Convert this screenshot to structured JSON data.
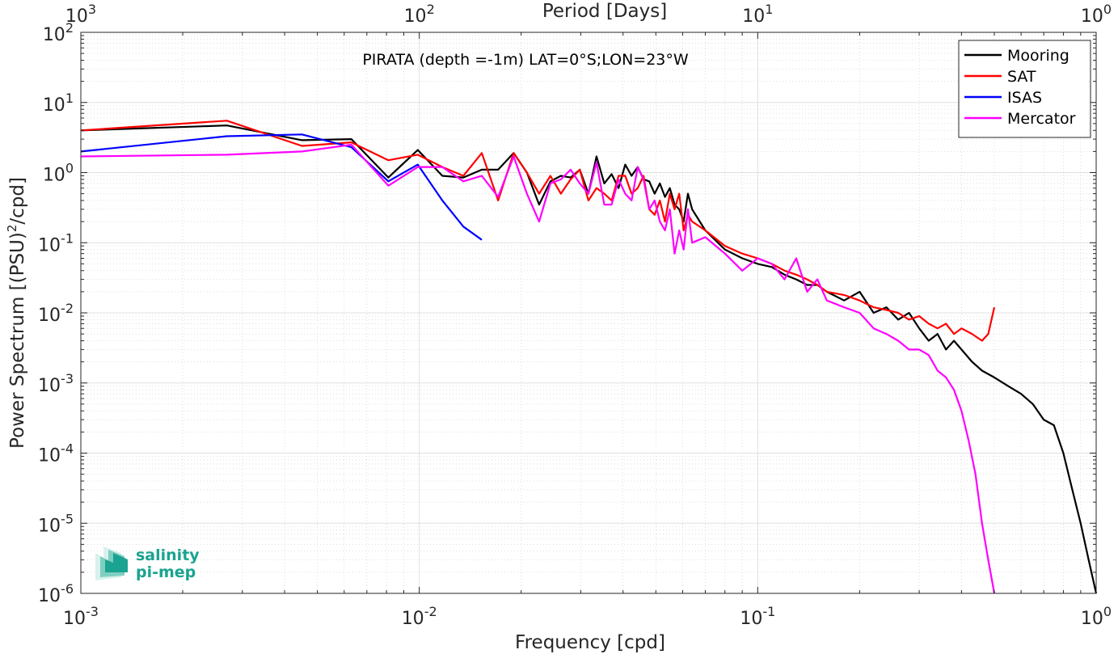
{
  "chart_data": {
    "type": "line",
    "title": "PIRATA (depth =-1m) LAT=0°S;LON=23°W",
    "xlabel": "Frequency [cpd]",
    "ylabel": "Power Spectrum [(PSU)^2/cpd]",
    "ylabel_parts": [
      "Power Spectrum [(PSU)",
      "2",
      "/cpd]"
    ],
    "x2label": "Period [Days]",
    "xscale": "log",
    "yscale": "log",
    "xlim": [
      0.001,
      1
    ],
    "ylim": [
      1e-06,
      100
    ],
    "grid": true,
    "minor_grid": true,
    "legend_position": "top-right",
    "x_ticks": [
      {
        "value": 0.001,
        "base": "10",
        "exp": "-3"
      },
      {
        "value": 0.01,
        "base": "10",
        "exp": "-2"
      },
      {
        "value": 0.1,
        "base": "10",
        "exp": "-1"
      },
      {
        "value": 1,
        "base": "10",
        "exp": "0"
      }
    ],
    "y_ticks": [
      {
        "value": 100,
        "base": "10",
        "exp": "2"
      },
      {
        "value": 10,
        "base": "10",
        "exp": "1"
      },
      {
        "value": 1,
        "base": "10",
        "exp": "0"
      },
      {
        "value": 0.1,
        "base": "10",
        "exp": "-1"
      },
      {
        "value": 0.01,
        "base": "10",
        "exp": "-2"
      },
      {
        "value": 0.001,
        "base": "10",
        "exp": "-3"
      },
      {
        "value": 0.0001,
        "base": "10",
        "exp": "-4"
      },
      {
        "value": 1e-05,
        "base": "10",
        "exp": "-5"
      },
      {
        "value": 1e-06,
        "base": "10",
        "exp": "-6"
      }
    ],
    "x2_ticks": [
      {
        "value": 0.001,
        "base": "10",
        "exp": "3"
      },
      {
        "value": 0.01,
        "base": "10",
        "exp": "2"
      },
      {
        "value": 0.1,
        "base": "10",
        "exp": "1"
      },
      {
        "value": 1,
        "base": "10",
        "exp": "0"
      }
    ],
    "series": [
      {
        "name": "Mooring",
        "color": "#000000",
        "x": [
          0.001,
          0.0027,
          0.0045,
          0.0063,
          0.0081,
          0.0099,
          0.0117,
          0.0135,
          0.0153,
          0.0171,
          0.019,
          0.0208,
          0.0226,
          0.0244,
          0.0262,
          0.028,
          0.0298,
          0.0316,
          0.0334,
          0.0352,
          0.037,
          0.0388,
          0.0406,
          0.0424,
          0.0442,
          0.046,
          0.0478,
          0.0496,
          0.0514,
          0.0532,
          0.055,
          0.0568,
          0.0586,
          0.0604,
          0.0622,
          0.064,
          0.07,
          0.08,
          0.09,
          0.1,
          0.11,
          0.12,
          0.13,
          0.14,
          0.15,
          0.16,
          0.18,
          0.2,
          0.22,
          0.24,
          0.26,
          0.28,
          0.3,
          0.32,
          0.34,
          0.36,
          0.38,
          0.4,
          0.43,
          0.46,
          0.5,
          0.55,
          0.6,
          0.65,
          0.7,
          0.75,
          0.8,
          0.85,
          0.9,
          0.95,
          1.0
        ],
        "y": [
          4.0,
          4.7,
          2.9,
          3.0,
          0.85,
          2.1,
          0.9,
          0.85,
          1.1,
          1.1,
          1.9,
          1.0,
          0.35,
          0.75,
          0.9,
          0.85,
          1.1,
          0.5,
          1.7,
          0.7,
          0.95,
          0.6,
          1.3,
          0.9,
          1.2,
          0.8,
          0.75,
          0.5,
          0.7,
          0.45,
          0.6,
          0.35,
          0.3,
          0.2,
          0.5,
          0.3,
          0.15,
          0.08,
          0.06,
          0.05,
          0.045,
          0.035,
          0.03,
          0.025,
          0.025,
          0.02,
          0.015,
          0.02,
          0.01,
          0.012,
          0.008,
          0.01,
          0.006,
          0.004,
          0.005,
          0.003,
          0.004,
          0.003,
          0.002,
          0.0015,
          0.0012,
          0.0009,
          0.0007,
          0.0005,
          0.0003,
          0.00025,
          0.0001,
          3e-05,
          1e-05,
          3e-06,
          1e-06
        ]
      },
      {
        "name": "SAT",
        "color": "#ff0000",
        "x": [
          0.001,
          0.0027,
          0.0045,
          0.0063,
          0.0081,
          0.0099,
          0.0117,
          0.0135,
          0.0153,
          0.0171,
          0.019,
          0.0208,
          0.0226,
          0.0244,
          0.0262,
          0.028,
          0.0298,
          0.0316,
          0.0334,
          0.0352,
          0.037,
          0.0388,
          0.0406,
          0.0424,
          0.0442,
          0.046,
          0.0478,
          0.0496,
          0.0514,
          0.0532,
          0.055,
          0.0568,
          0.0586,
          0.0604,
          0.0622,
          0.064,
          0.07,
          0.08,
          0.09,
          0.1,
          0.11,
          0.12,
          0.13,
          0.14,
          0.15,
          0.16,
          0.18,
          0.2,
          0.22,
          0.24,
          0.26,
          0.28,
          0.3,
          0.32,
          0.34,
          0.36,
          0.38,
          0.4,
          0.43,
          0.46,
          0.48,
          0.5
        ],
        "y": [
          4.0,
          5.5,
          2.4,
          2.7,
          1.5,
          1.8,
          1.2,
          0.9,
          1.9,
          0.4,
          1.9,
          1.0,
          0.5,
          0.9,
          0.5,
          0.8,
          1.1,
          0.4,
          0.6,
          0.5,
          0.4,
          0.9,
          0.9,
          0.5,
          0.6,
          0.9,
          0.3,
          0.25,
          0.4,
          0.2,
          0.5,
          0.3,
          0.5,
          0.15,
          0.25,
          0.2,
          0.15,
          0.09,
          0.07,
          0.06,
          0.05,
          0.04,
          0.035,
          0.03,
          0.025,
          0.02,
          0.018,
          0.015,
          0.012,
          0.011,
          0.01,
          0.008,
          0.009,
          0.007,
          0.006,
          0.007,
          0.005,
          0.006,
          0.005,
          0.004,
          0.005,
          0.012
        ]
      },
      {
        "name": "ISAS",
        "color": "#0000ff",
        "x": [
          0.001,
          0.0027,
          0.0045,
          0.0063,
          0.0081,
          0.0099,
          0.0117,
          0.0135,
          0.0153
        ],
        "y": [
          2.0,
          3.3,
          3.5,
          2.3,
          0.75,
          1.3,
          0.4,
          0.17,
          0.11
        ]
      },
      {
        "name": "Mercator",
        "color": "#ff00ff",
        "x": [
          0.001,
          0.0027,
          0.0045,
          0.0063,
          0.0081,
          0.0099,
          0.0117,
          0.0135,
          0.0153,
          0.0171,
          0.019,
          0.0208,
          0.0226,
          0.0244,
          0.0262,
          0.028,
          0.0298,
          0.0316,
          0.0334,
          0.0352,
          0.037,
          0.0388,
          0.0406,
          0.0424,
          0.0442,
          0.046,
          0.0478,
          0.0496,
          0.0514,
          0.0532,
          0.055,
          0.0568,
          0.0586,
          0.0604,
          0.0622,
          0.064,
          0.07,
          0.08,
          0.09,
          0.1,
          0.11,
          0.12,
          0.13,
          0.14,
          0.15,
          0.16,
          0.18,
          0.2,
          0.22,
          0.24,
          0.26,
          0.28,
          0.3,
          0.32,
          0.34,
          0.36,
          0.38,
          0.4,
          0.42,
          0.44,
          0.46,
          0.48,
          0.5
        ],
        "y": [
          1.7,
          1.8,
          2.0,
          2.5,
          0.65,
          1.2,
          1.2,
          0.75,
          0.9,
          0.45,
          1.7,
          0.5,
          0.2,
          0.7,
          0.8,
          1.1,
          0.7,
          0.5,
          1.4,
          0.35,
          0.35,
          0.8,
          0.5,
          0.4,
          1.2,
          0.8,
          0.3,
          0.4,
          0.2,
          0.15,
          0.3,
          0.07,
          0.15,
          0.08,
          0.3,
          0.1,
          0.12,
          0.07,
          0.04,
          0.06,
          0.05,
          0.03,
          0.06,
          0.02,
          0.03,
          0.015,
          0.012,
          0.01,
          0.006,
          0.005,
          0.004,
          0.003,
          0.003,
          0.0025,
          0.0015,
          0.0012,
          0.0008,
          0.0004,
          0.00015,
          5e-05,
          1e-05,
          3e-06,
          1e-06
        ]
      }
    ]
  },
  "logo": {
    "line1": "salinity",
    "line2": "pi-mep"
  }
}
